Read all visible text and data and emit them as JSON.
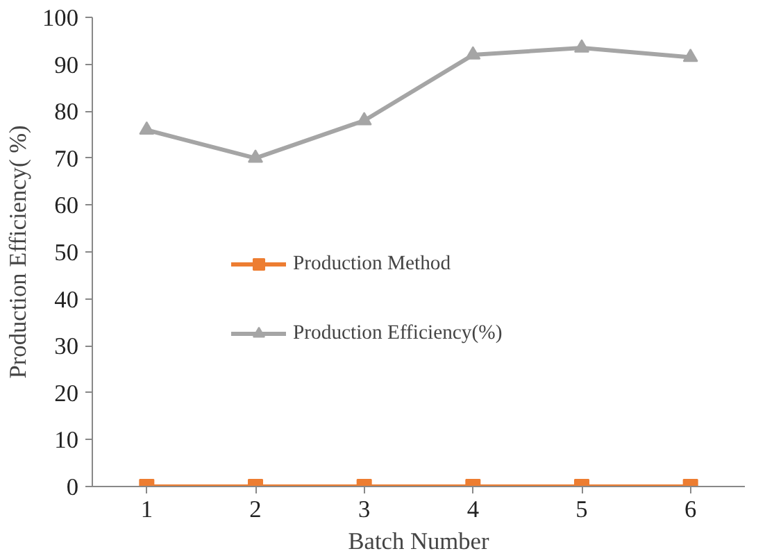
{
  "chart_data": {
    "type": "line",
    "xlabel": "Batch Number",
    "ylabel": "Production Efficiency( %)",
    "categories": [
      "1",
      "2",
      "3",
      "4",
      "5",
      "6"
    ],
    "series": [
      {
        "name": "Production Method",
        "color": "#ed7d31",
        "marker": "square",
        "values": [
          0,
          0,
          0,
          0,
          0,
          0
        ]
      },
      {
        "name": "Production Efficiency(%)",
        "color": "#a5a5a5",
        "marker": "triangle",
        "values": [
          76,
          70,
          78,
          92,
          93.5,
          91.5
        ]
      }
    ],
    "ylim": [
      0,
      100
    ],
    "yticks": [
      0,
      10,
      20,
      30,
      40,
      50,
      60,
      70,
      80,
      90,
      100
    ],
    "grid": false,
    "legend": "left"
  }
}
